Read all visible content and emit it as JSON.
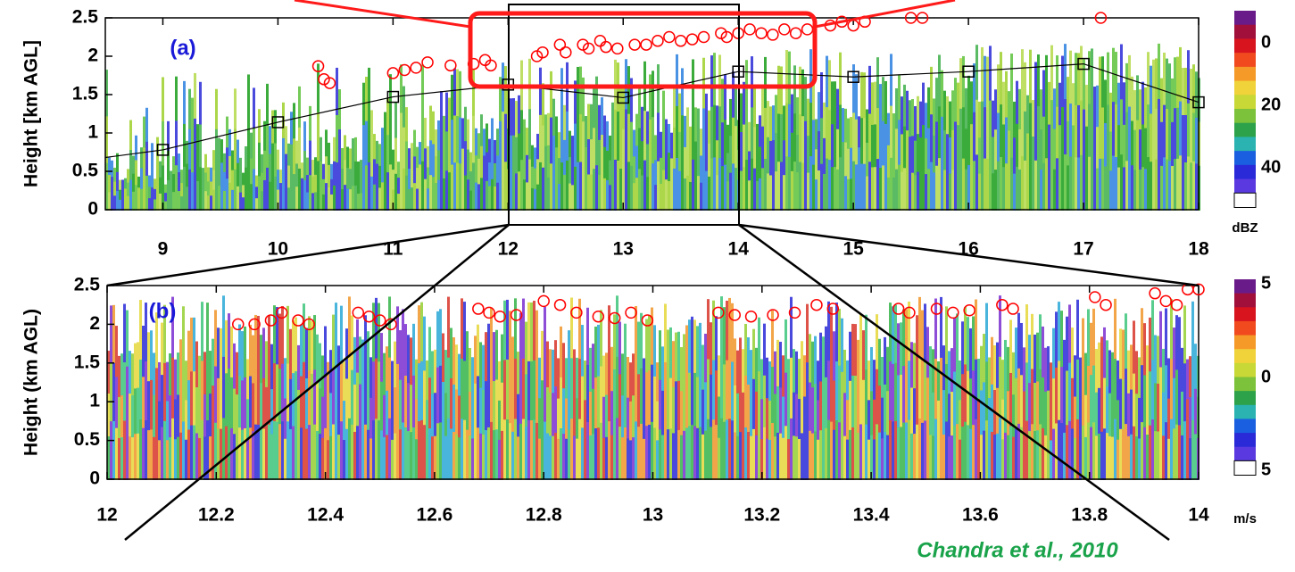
{
  "chart_data": [
    {
      "type": "line",
      "panel_label": "(a)",
      "ylabel": "Height [km AGL]",
      "xlim": [
        8.5,
        18
      ],
      "xticks": [
        9,
        10,
        11,
        12,
        13,
        14,
        15,
        16,
        17,
        18
      ],
      "ylim": [
        0,
        2.5
      ],
      "yticks": [
        0,
        0.5,
        1,
        1.5,
        2,
        2.5
      ],
      "colorbar": {
        "labels": [
          "0",
          "20",
          "40"
        ],
        "unit": "dBZ"
      },
      "series": [
        {
          "type": "line",
          "color": "#000000",
          "marker": "square",
          "x": [
            8.5,
            9,
            10,
            11,
            12,
            13,
            14,
            15,
            16,
            17,
            18
          ],
          "values": [
            0.68,
            0.78,
            1.14,
            1.47,
            1.63,
            1.46,
            1.8,
            1.73,
            1.8,
            1.9,
            1.4
          ]
        },
        {
          "type": "scatter",
          "color": "#ff0000",
          "marker": "circle",
          "x": [
            10.35,
            10.4,
            10.45,
            11.0,
            11.1,
            11.2,
            11.3,
            11.5,
            11.7,
            11.8,
            11.85,
            12.25,
            12.3,
            12.45,
            12.5,
            12.65,
            12.7,
            12.8,
            12.85,
            12.95,
            13.1,
            13.2,
            13.3,
            13.4,
            13.5,
            13.6,
            13.7,
            13.85,
            13.9,
            14.0,
            14.1,
            14.2,
            14.3,
            14.4,
            14.5,
            14.6,
            14.8,
            14.9,
            15.0,
            15.1,
            15.5,
            15.6,
            17.15
          ],
          "values": [
            1.87,
            1.7,
            1.65,
            1.78,
            1.82,
            1.85,
            1.92,
            1.88,
            1.9,
            1.95,
            1.88,
            2.0,
            2.05,
            2.15,
            2.05,
            2.15,
            2.1,
            2.2,
            2.12,
            2.1,
            2.15,
            2.15,
            2.2,
            2.25,
            2.2,
            2.22,
            2.25,
            2.3,
            2.25,
            2.3,
            2.35,
            2.3,
            2.28,
            2.35,
            2.3,
            2.35,
            2.4,
            2.45,
            2.4,
            2.45,
            2.5,
            2.5,
            2.5
          ]
        }
      ]
    },
    {
      "type": "scatter",
      "panel_label": "(b)",
      "ylabel": "Height (km AGL)",
      "xlim": [
        12,
        14
      ],
      "xticks": [
        12,
        12.2,
        12.4,
        12.6,
        12.8,
        13,
        13.2,
        13.4,
        13.6,
        13.8,
        14
      ],
      "ylim": [
        0,
        2.5
      ],
      "yticks": [
        0,
        0.5,
        1,
        1.5,
        2,
        2.5
      ],
      "colorbar": {
        "labels": [
          "5",
          "0",
          "5"
        ],
        "unit": "m/s"
      },
      "series": [
        {
          "type": "scatter",
          "color": "#ff0000",
          "marker": "circle",
          "x": [
            12.24,
            12.27,
            12.3,
            12.32,
            12.35,
            12.37,
            12.46,
            12.48,
            12.5,
            12.52,
            12.68,
            12.7,
            12.72,
            12.75,
            12.8,
            12.83,
            12.86,
            12.9,
            12.93,
            12.96,
            12.99,
            13.12,
            13.15,
            13.18,
            13.22,
            13.26,
            13.3,
            13.33,
            13.45,
            13.47,
            13.52,
            13.55,
            13.58,
            13.64,
            13.66,
            13.81,
            13.83,
            13.92,
            13.94,
            13.96,
            13.98,
            14.0
          ],
          "values": [
            2.0,
            2.0,
            2.05,
            2.15,
            2.05,
            2.0,
            2.15,
            2.1,
            2.05,
            2.0,
            2.2,
            2.15,
            2.1,
            2.12,
            2.3,
            2.25,
            2.15,
            2.1,
            2.08,
            2.15,
            2.05,
            2.15,
            2.12,
            2.1,
            2.12,
            2.15,
            2.25,
            2.2,
            2.2,
            2.15,
            2.2,
            2.15,
            2.18,
            2.25,
            2.2,
            2.35,
            2.25,
            2.4,
            2.3,
            2.25,
            2.45,
            2.45
          ]
        }
      ]
    }
  ],
  "credit": "Chandra et al., 2010"
}
